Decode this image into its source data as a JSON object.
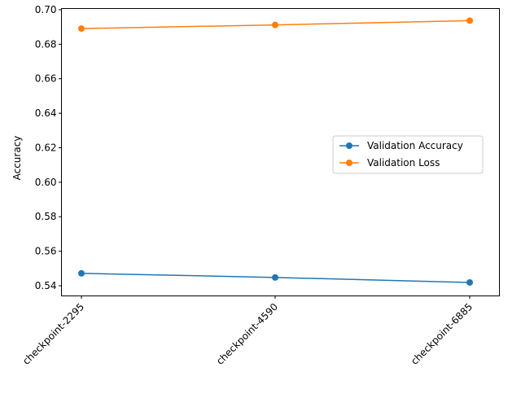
{
  "chart_data": {
    "type": "line",
    "title": "",
    "xlabel": "",
    "ylabel": "Accuracy",
    "categories": [
      "checkpoint-2295",
      "checkpoint-4590",
      "checkpoint-6885"
    ],
    "series": [
      {
        "name": "Validation Accuracy",
        "values": [
          0.5472,
          0.5448,
          0.5419
        ],
        "color": "#1f77b4",
        "marker": "circle"
      },
      {
        "name": "Validation Loss",
        "values": [
          0.6891,
          0.6912,
          0.6937
        ],
        "color": "#ff7f0e",
        "marker": "circle"
      }
    ],
    "ylim": [
      0.5341,
      0.7007
    ],
    "yticks": [
      0.54,
      0.56,
      0.58,
      0.6,
      0.62,
      0.64,
      0.66,
      0.68,
      0.7
    ],
    "ytick_labels": [
      "0.54",
      "0.56",
      "0.58",
      "0.60",
      "0.62",
      "0.64",
      "0.66",
      "0.68",
      "0.70"
    ],
    "xtick_rotation": 45,
    "grid": false,
    "legend_position": "center-right"
  }
}
